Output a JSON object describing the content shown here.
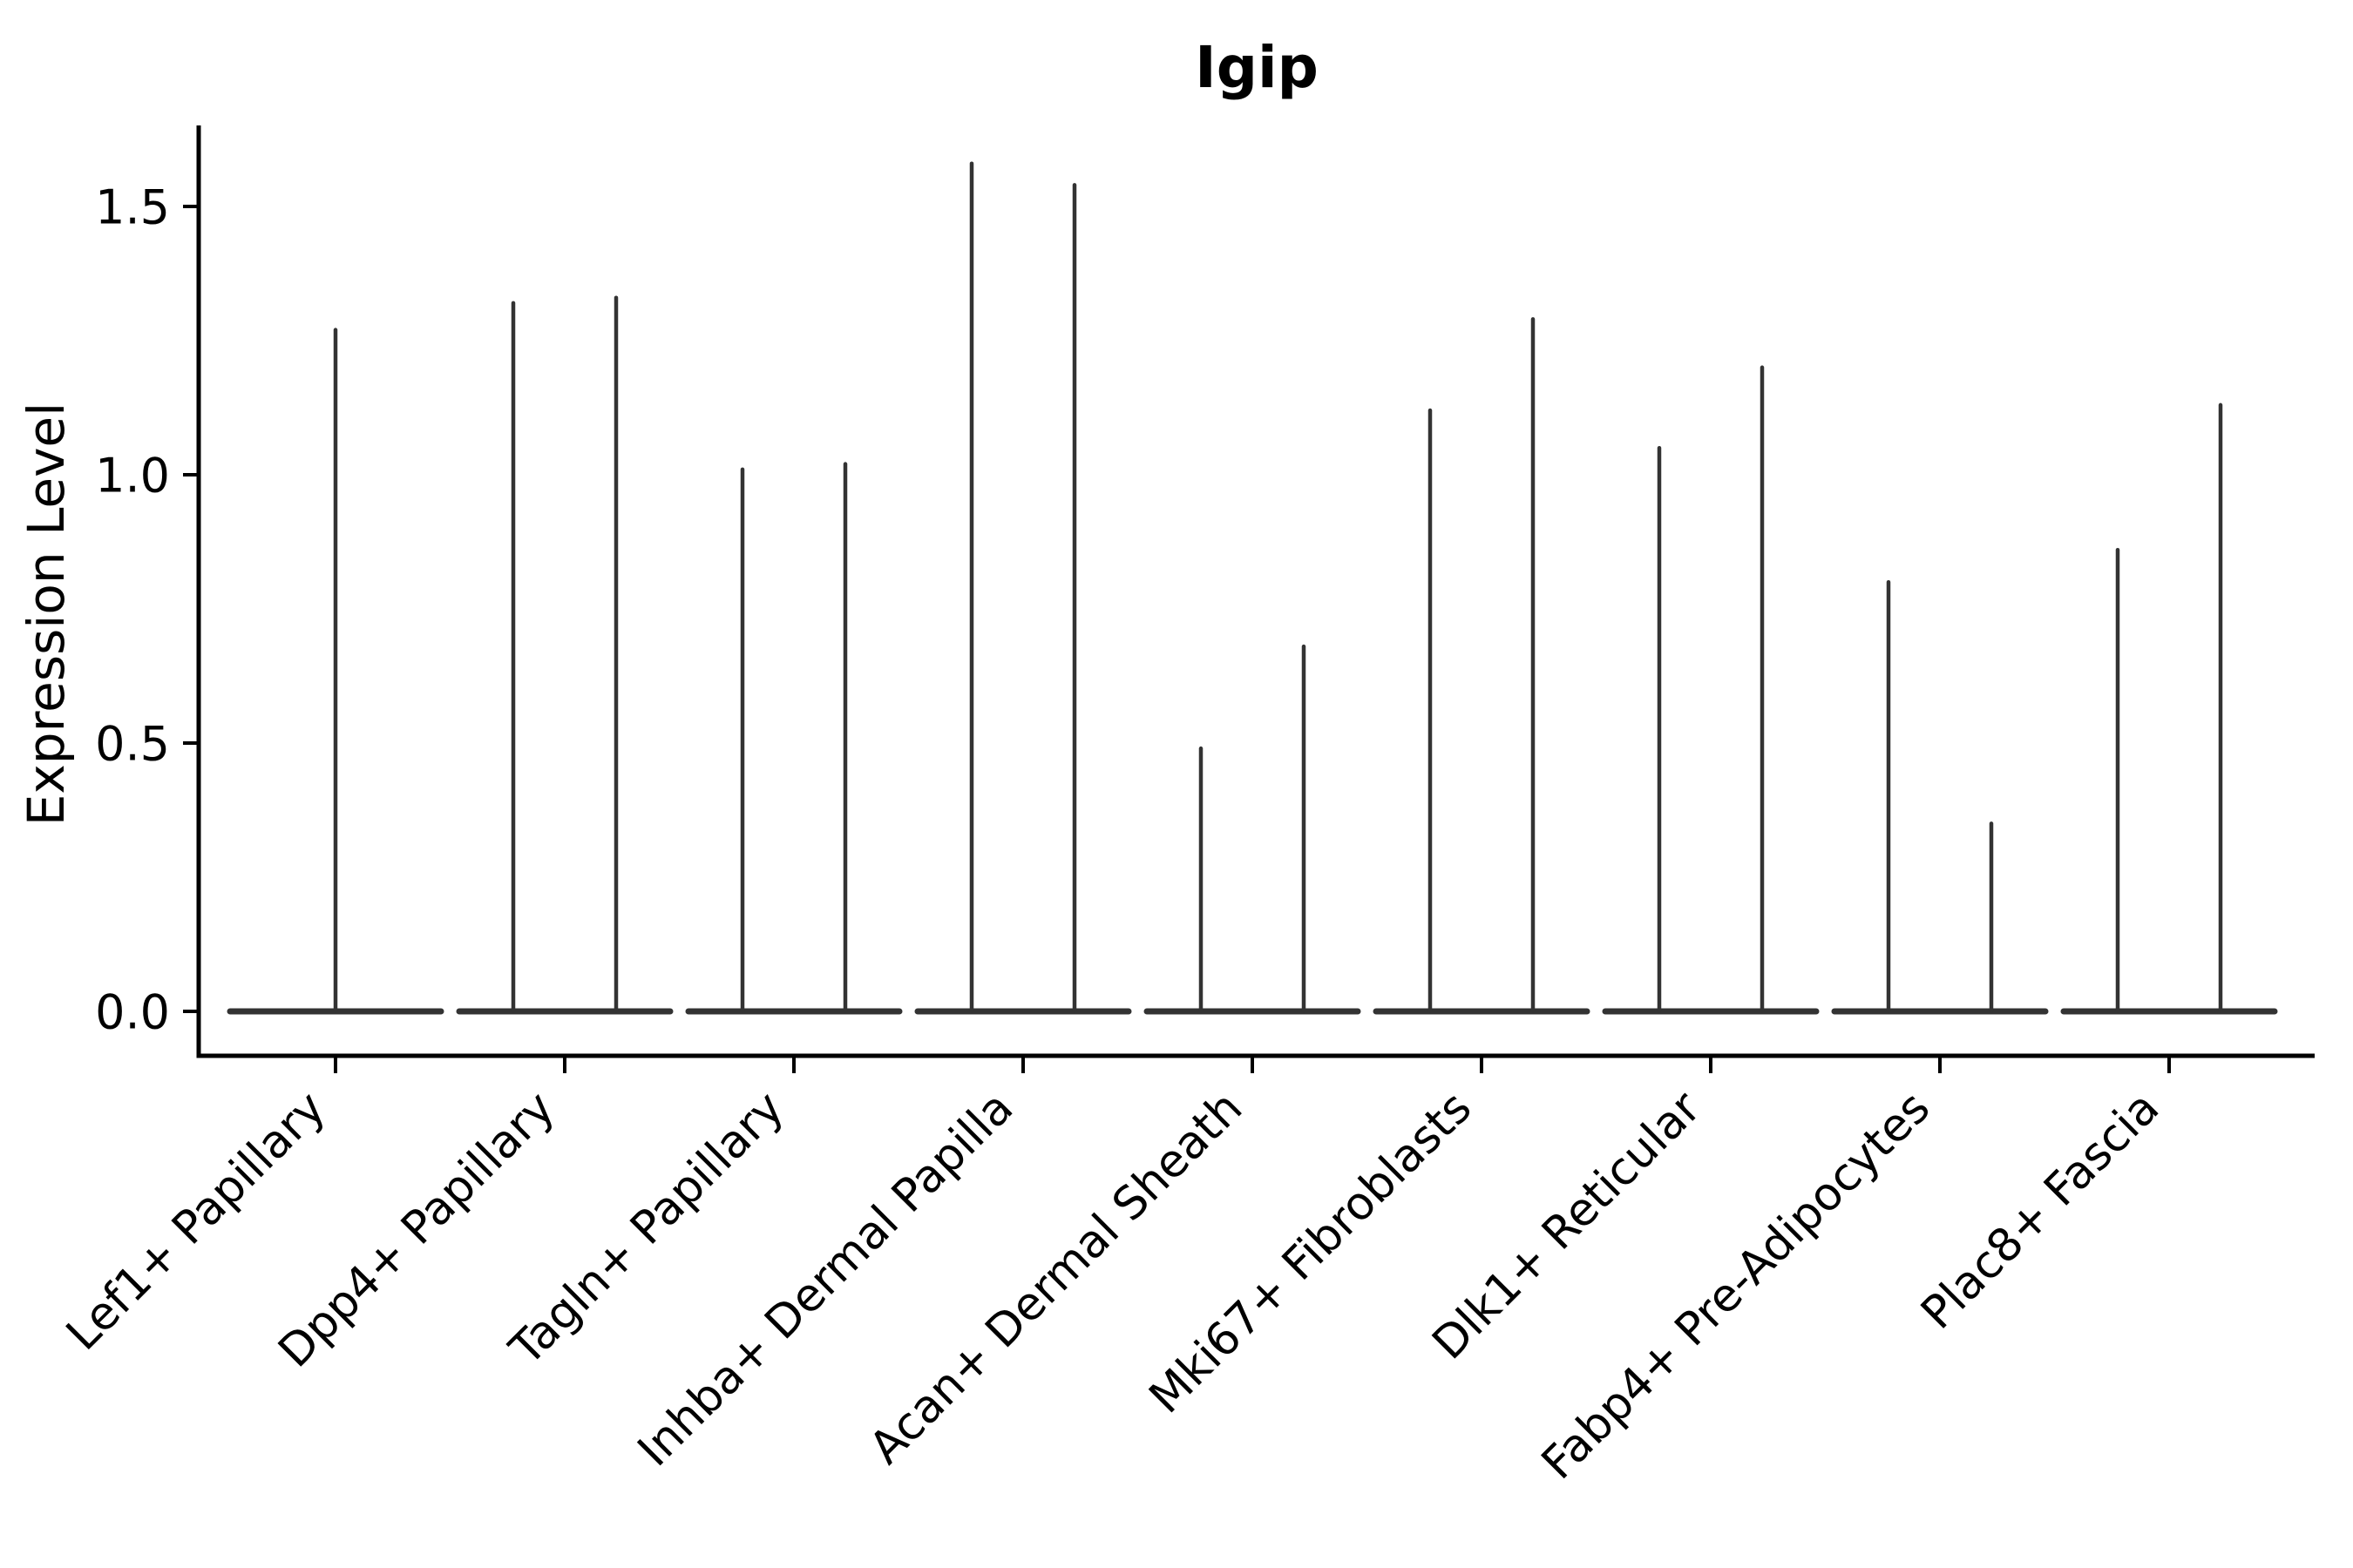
{
  "chart_data": {
    "type": "violin",
    "title": "Igip",
    "ylabel": "Expression Level",
    "xlabel": "",
    "ytick_labels": [
      "0.0",
      "0.5",
      "1.0",
      "1.5"
    ],
    "ytick_values": [
      0.0,
      0.5,
      1.0,
      1.5
    ],
    "ylim": [
      -0.08,
      1.66
    ],
    "grid": false,
    "legend_position": "none",
    "categories": [
      "Lef1+ Papillary",
      "Dpp4+ Papillary",
      "Tagln+ Papillary",
      "Inhba+ Dermal Papilla",
      "Acan+ Dermal Sheath",
      "Mki67+ Fibroblasts",
      "Dlk1+ Reticular",
      "Fabp4+ Pre-Adipocytes",
      "Plac8+ Fascia"
    ],
    "series": [
      {
        "category": "Lef1+ Papillary",
        "violin_max_expression": [
          1.27
        ]
      },
      {
        "category": "Dpp4+ Papillary",
        "violin_max_expression": [
          1.32,
          1.33
        ]
      },
      {
        "category": "Tagln+ Papillary",
        "violin_max_expression": [
          1.01,
          1.02
        ]
      },
      {
        "category": "Inhba+ Dermal Papilla",
        "violin_max_expression": [
          1.58,
          1.54
        ]
      },
      {
        "category": "Acan+ Dermal Sheath",
        "violin_max_expression": [
          0.49,
          0.68
        ]
      },
      {
        "category": "Mki67+ Fibroblasts",
        "violin_max_expression": [
          1.12,
          1.29
        ]
      },
      {
        "category": "Dlk1+ Reticular",
        "violin_max_expression": [
          1.05,
          1.2
        ]
      },
      {
        "category": "Fabp4+ Pre-Adipocytes",
        "violin_max_expression": [
          0.8,
          0.35
        ]
      },
      {
        "category": "Plac8+ Fascia",
        "violin_max_expression": [
          0.86,
          1.13
        ]
      }
    ],
    "violin_shape_note": "each violin collapses to a flat base at 0 with a single thin density spike up to its max value",
    "colors": {
      "violin_stroke": "#333333",
      "axis": "#000000",
      "text": "#000000",
      "background": "#ffffff"
    }
  }
}
